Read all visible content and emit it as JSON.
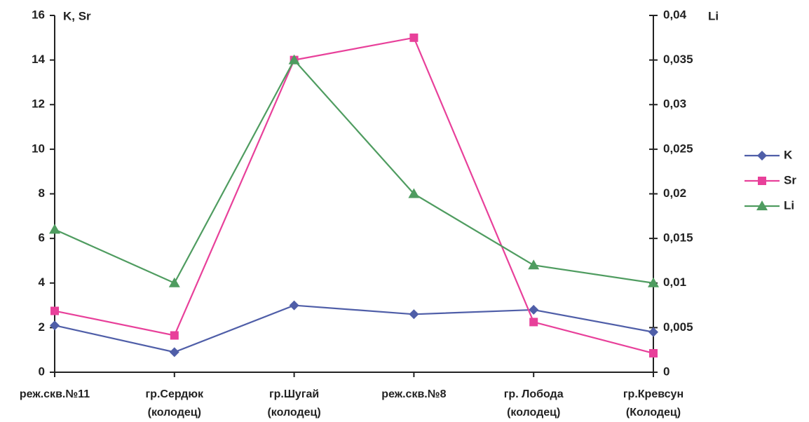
{
  "chart_data": {
    "type": "line",
    "y_label": "K, Sr",
    "y2_label": "Li",
    "categories": [
      "реж.скв.№11",
      "гр.Сердюк (колодец)",
      "гр.Шугай (колодец)",
      "реж.скв.№8",
      "гр. Лобода (колодец)",
      "гр.Кревсун (Колодец)"
    ],
    "series": [
      {
        "name": "K",
        "color": "#4f5ea8",
        "marker": "diamond",
        "values": [
          2.1,
          0.9,
          3.0,
          2.6,
          2.8,
          1.8
        ]
      },
      {
        "name": "Sr",
        "color": "#e8409a",
        "marker": "square",
        "values": [
          2.75,
          1.65,
          14.0,
          15.0,
          2.25,
          0.85
        ]
      },
      {
        "name": "Li",
        "color": "#4f9c60",
        "marker": "triangle",
        "axis": "y2",
        "values": [
          0.016,
          0.01,
          0.035,
          0.02,
          0.012,
          0.01
        ]
      }
    ],
    "ylim": [
      0,
      16
    ],
    "yticks": [
      0,
      2,
      4,
      6,
      8,
      10,
      12,
      14,
      16
    ],
    "y2lim": [
      0,
      0.04
    ],
    "y2ticks": [
      0,
      {
        "value": 0.005,
        "label": "0,005"
      },
      {
        "value": 0.01,
        "label": "0,01"
      },
      {
        "value": 0.015,
        "label": "0,015"
      },
      {
        "value": 0.02,
        "label": "0,02"
      },
      {
        "value": 0.025,
        "label": "0,025"
      },
      {
        "value": 0.03,
        "label": "0,03"
      },
      {
        "value": 0.035,
        "label": "0,035"
      },
      {
        "value": 0.04,
        "label": "0,04"
      }
    ],
    "legend": "right",
    "grid": false
  }
}
